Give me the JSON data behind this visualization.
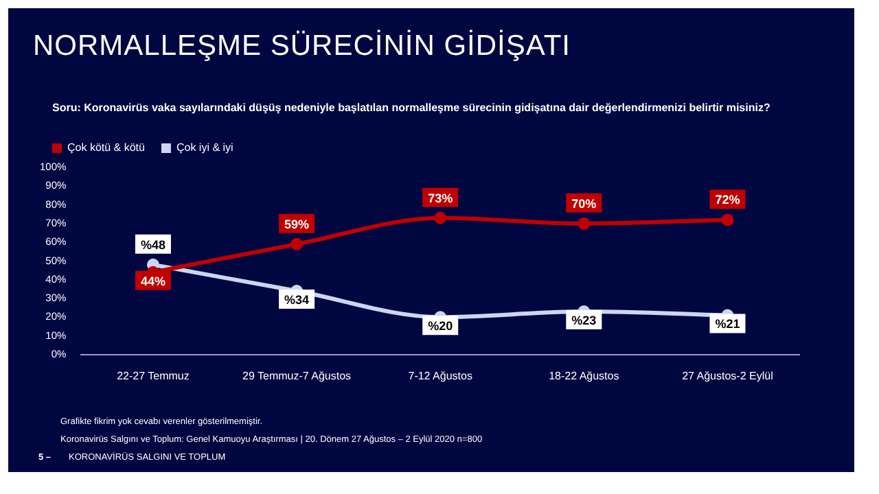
{
  "chart_data": {
    "type": "line",
    "title": "NORMALLEŞME SÜRECİNİN GİDİŞATI",
    "subtitle": "Soru: Koronavirüs vaka sayılarındaki düşüş nedeniyle başlatılan normalleşme sürecinin gidişatına dair değerlendirmenizi belirtir misiniz?",
    "categories": [
      "22-27 Temmuz",
      "29 Temmuz-7 Ağustos",
      "7-12 Ağustos",
      "18-22 Ağustos",
      "27 Ağustos-2 Eylül"
    ],
    "series": [
      {
        "name": "Çok kötü & kötü",
        "color": "#c00000",
        "values": [
          44,
          59,
          73,
          70,
          72
        ],
        "value_labels": [
          "44%",
          "59%",
          "73%",
          "70%",
          "72%"
        ]
      },
      {
        "name": "Çok iyi & iyi",
        "color": "#c6d9f1",
        "values": [
          48,
          34,
          20,
          23,
          21
        ],
        "value_labels": [
          "%48",
          "%34",
          "%20",
          "%23",
          "%21"
        ]
      }
    ],
    "ylim": [
      0,
      100
    ],
    "yticks": [
      {
        "value": 0,
        "label": "0%"
      },
      {
        "value": 10,
        "label": "10%"
      },
      {
        "value": 20,
        "label": "20%"
      },
      {
        "value": 30,
        "label": "30%"
      },
      {
        "value": 40,
        "label": "40%"
      },
      {
        "value": 50,
        "label": "50%"
      },
      {
        "value": 60,
        "label": "60%"
      },
      {
        "value": 70,
        "label": "70%"
      },
      {
        "value": 80,
        "label": "80%"
      },
      {
        "value": 90,
        "label": "90%"
      },
      {
        "value": 100,
        "label": "100%"
      }
    ],
    "grid": false,
    "legend": "top left",
    "marker": "circle",
    "line_style": "solid",
    "annotations": [
      "Grafikte fikrim yok cevabı verenler gösterilmemiştir.",
      "Koronavirüs Salgını ve Toplum: Genel Kamuoyu Araştırması | 20. Dönem 27 Ağustos – 2 Eylül 2020   n=800",
      "5 –",
      "KORONAVİRÜS SALGINI VE TOPLUM"
    ]
  }
}
